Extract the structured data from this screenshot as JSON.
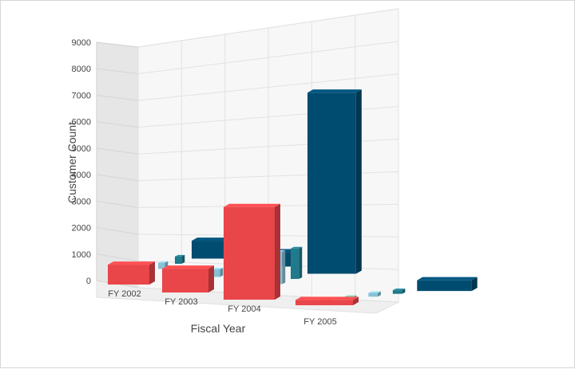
{
  "chart_data": {
    "type": "bar",
    "title": "",
    "xlabel": "Fiscal Year",
    "ylabel": "Customer Count",
    "categories": [
      "FY 2002",
      "FY 2003",
      "FY 2004",
      "FY 2005"
    ],
    "ylim": [
      0,
      9000
    ],
    "yticks": [
      "9000",
      "8000",
      "7000",
      "6000",
      "5000",
      "4000",
      "3000",
      "2000",
      "1000",
      "0"
    ],
    "grid": true,
    "series": [
      {
        "color": "#e94649",
        "values": [
          750,
          900,
          3500,
          200
        ]
      },
      {
        "color": "#f6b53f",
        "values": [
          150,
          200,
          1550,
          150
        ]
      },
      {
        "color": "#6fbaa0",
        "values": [
          100,
          150,
          1400,
          100
        ]
      },
      {
        "color": "#87c1d6",
        "values": [
          250,
          300,
          1300,
          150
        ]
      },
      {
        "color": "#1f7a8c",
        "values": [
          300,
          350,
          1250,
          150
        ]
      },
      {
        "color": "#004c70",
        "values": [
          750,
          600,
          7600,
          450
        ]
      }
    ]
  }
}
